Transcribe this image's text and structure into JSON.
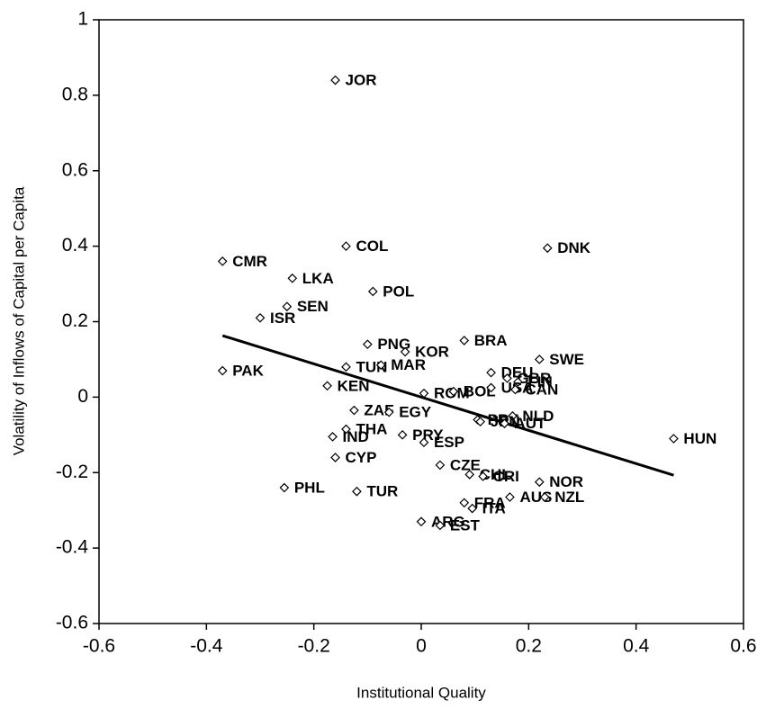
{
  "chart_data": {
    "type": "scatter",
    "xlabel": "Institutional Quality",
    "ylabel": "Volatility of Inflows of Capital per Capita",
    "xlim": [
      -0.6,
      0.6
    ],
    "xticks": [
      -0.6,
      -0.4,
      -0.2,
      0,
      0.2,
      0.4,
      0.6
    ],
    "ylim": [
      -0.6,
      1
    ],
    "yticks": [
      -0.6,
      -0.4,
      -0.2,
      0,
      0.2,
      0.4,
      0.6,
      0.8,
      1
    ],
    "marker_color": "#000000",
    "points": [
      {
        "label": "JOR",
        "x": -0.16,
        "y": 0.84
      },
      {
        "label": "CMR",
        "x": -0.37,
        "y": 0.36
      },
      {
        "label": "COL",
        "x": -0.14,
        "y": 0.4
      },
      {
        "label": "DNK",
        "x": 0.235,
        "y": 0.395
      },
      {
        "label": "LKA",
        "x": -0.24,
        "y": 0.315
      },
      {
        "label": "POL",
        "x": -0.09,
        "y": 0.28
      },
      {
        "label": "SEN",
        "x": -0.25,
        "y": 0.24
      },
      {
        "label": "ISR",
        "x": -0.3,
        "y": 0.21
      },
      {
        "label": "PNG",
        "x": -0.1,
        "y": 0.14
      },
      {
        "label": "BRA",
        "x": 0.08,
        "y": 0.15
      },
      {
        "label": "KOR",
        "x": -0.03,
        "y": 0.12
      },
      {
        "label": "SWE",
        "x": 0.22,
        "y": 0.1
      },
      {
        "label": "PAK",
        "x": -0.37,
        "y": 0.07
      },
      {
        "label": "TUN",
        "x": -0.14,
        "y": 0.08
      },
      {
        "label": "MAR",
        "x": -0.075,
        "y": 0.085
      },
      {
        "label": "DEU",
        "x": 0.13,
        "y": 0.065
      },
      {
        "label": "GBR",
        "x": 0.16,
        "y": 0.05
      },
      {
        "label": "FIN",
        "x": 0.18,
        "y": 0.04
      },
      {
        "label": "KEN",
        "x": -0.175,
        "y": 0.03
      },
      {
        "label": "ROM",
        "x": 0.005,
        "y": 0.01
      },
      {
        "label": "BOL",
        "x": 0.06,
        "y": 0.015
      },
      {
        "label": "USA",
        "x": 0.13,
        "y": 0.025
      },
      {
        "label": "CAN",
        "x": 0.175,
        "y": 0.02
      },
      {
        "label": "ZAF",
        "x": -0.125,
        "y": -0.035
      },
      {
        "label": "EGY",
        "x": -0.06,
        "y": -0.04
      },
      {
        "label": "PRT",
        "x": 0.105,
        "y": -0.06
      },
      {
        "label": "NLD",
        "x": 0.17,
        "y": -0.05
      },
      {
        "label": "THA",
        "x": -0.14,
        "y": -0.085
      },
      {
        "label": "PRY",
        "x": -0.035,
        "y": -0.1
      },
      {
        "label": "IND",
        "x": -0.165,
        "y": -0.105
      },
      {
        "label": "ESP",
        "x": 0.005,
        "y": -0.12
      },
      {
        "label": "JPN",
        "x": 0.11,
        "y": -0.065
      },
      {
        "label": "AUT",
        "x": 0.155,
        "y": -0.07
      },
      {
        "label": "HUN",
        "x": 0.47,
        "y": -0.11
      },
      {
        "label": "CYP",
        "x": -0.16,
        "y": -0.16
      },
      {
        "label": "CZE",
        "x": 0.035,
        "y": -0.18
      },
      {
        "label": "CHL",
        "x": 0.09,
        "y": -0.205
      },
      {
        "label": "CRI",
        "x": 0.115,
        "y": -0.21
      },
      {
        "label": "NOR",
        "x": 0.22,
        "y": -0.225
      },
      {
        "label": "PHL",
        "x": -0.255,
        "y": -0.24
      },
      {
        "label": "TUR",
        "x": -0.12,
        "y": -0.25
      },
      {
        "label": "AUS",
        "x": 0.165,
        "y": -0.265
      },
      {
        "label": "NZL",
        "x": 0.23,
        "y": -0.265
      },
      {
        "label": "FRA",
        "x": 0.08,
        "y": -0.28
      },
      {
        "label": "ITA",
        "x": 0.095,
        "y": -0.295
      },
      {
        "label": "ARG",
        "x": 0.0,
        "y": -0.33
      },
      {
        "label": "EST",
        "x": 0.035,
        "y": -0.34
      }
    ],
    "trend_line": {
      "x": [
        -0.37,
        0.47
      ],
      "y": [
        0.163,
        -0.207
      ]
    }
  }
}
